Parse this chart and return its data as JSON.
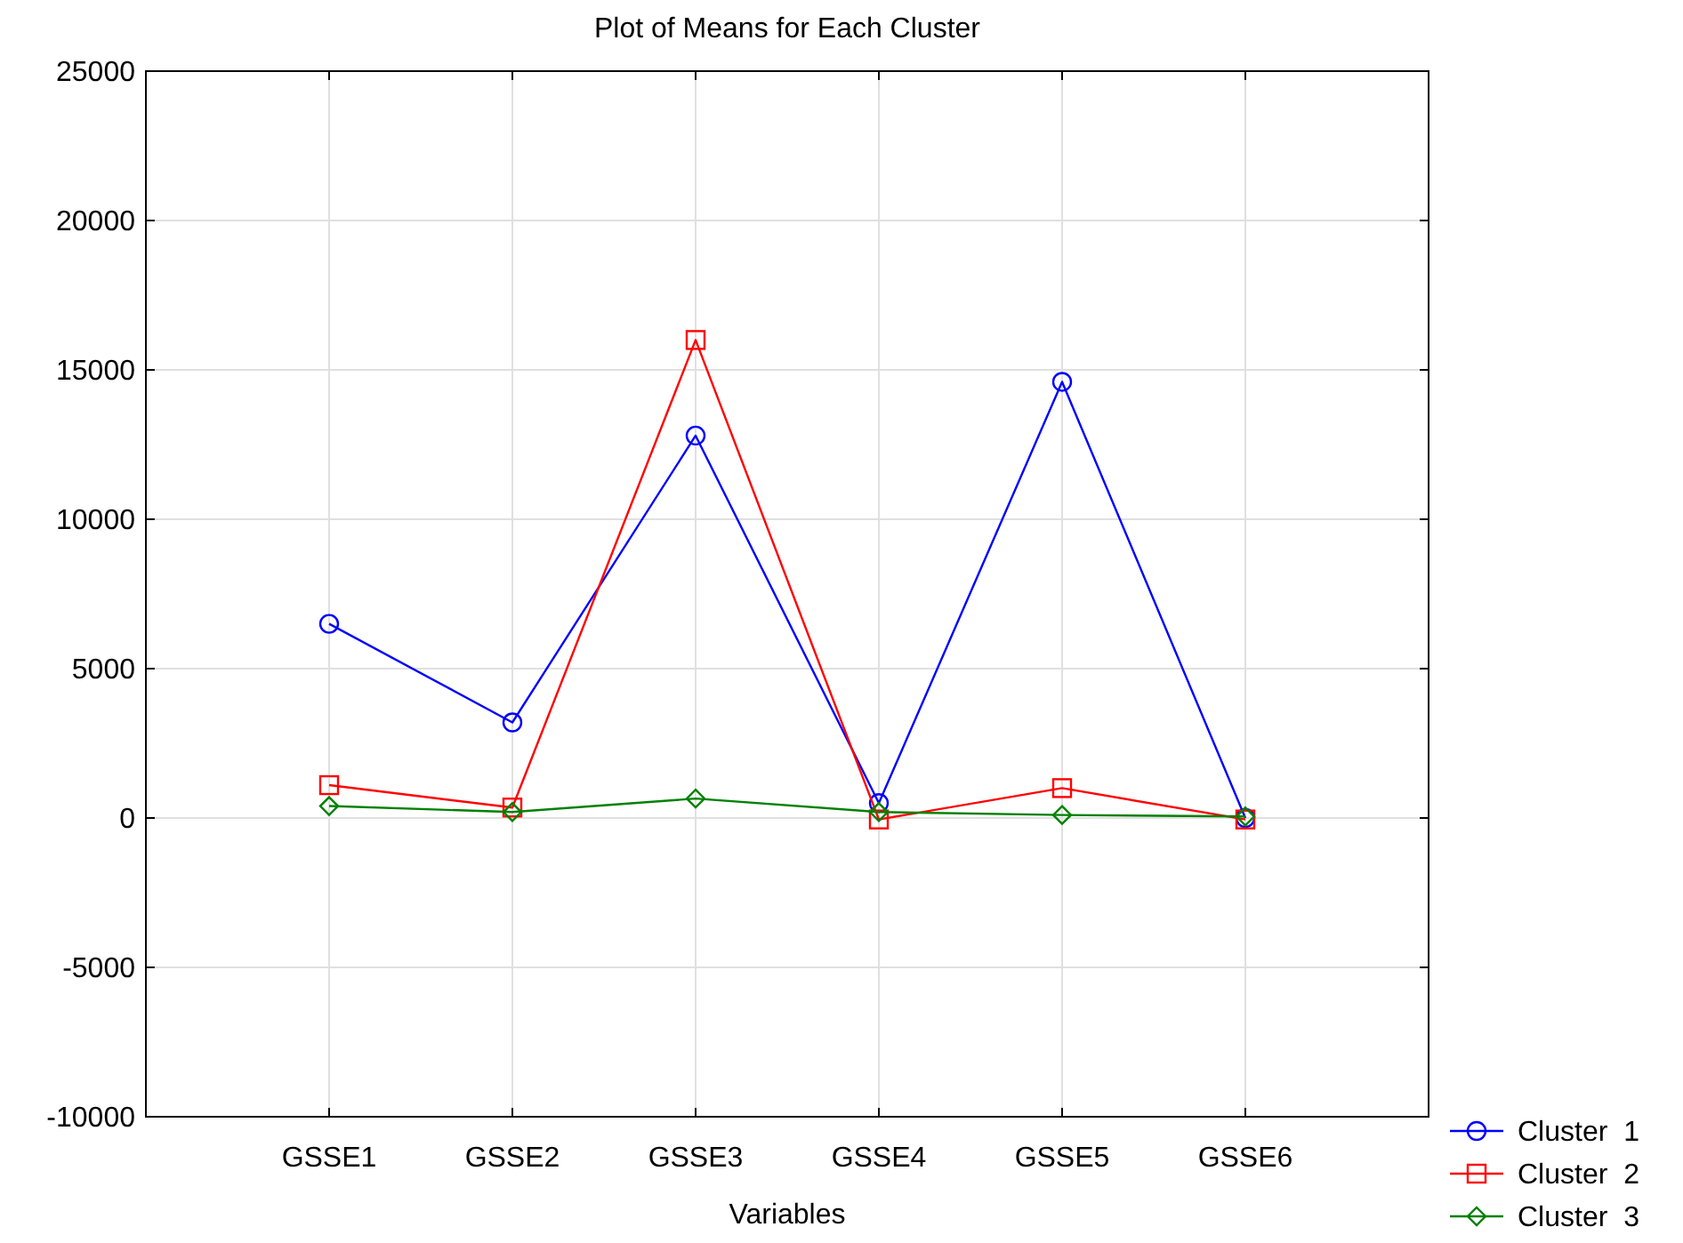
{
  "chart_data": {
    "type": "line",
    "title": "Plot of Means for Each Cluster",
    "xlabel": "Variables",
    "categories": [
      "GSSE1",
      "GSSE2",
      "GSSE3",
      "GSSE4",
      "GSSE5",
      "GSSE6"
    ],
    "series": [
      {
        "name": "Cluster  1",
        "color": "#0000ff",
        "marker": "circle",
        "values": [
          6500,
          3200,
          12800,
          500,
          14600,
          0
        ]
      },
      {
        "name": "Cluster  2",
        "color": "#ff0000",
        "marker": "square",
        "values": [
          1100,
          350,
          16000,
          -50,
          1000,
          -50
        ]
      },
      {
        "name": "Cluster  3",
        "color": "#008000",
        "marker": "diamond",
        "values": [
          400,
          200,
          650,
          200,
          100,
          50
        ]
      }
    ],
    "ylim": [
      -10000,
      25000
    ],
    "yticks": [
      -10000,
      -5000,
      0,
      5000,
      10000,
      15000,
      20000,
      25000
    ],
    "grid": true,
    "legend": "bottom right",
    "line_style": "solid"
  }
}
